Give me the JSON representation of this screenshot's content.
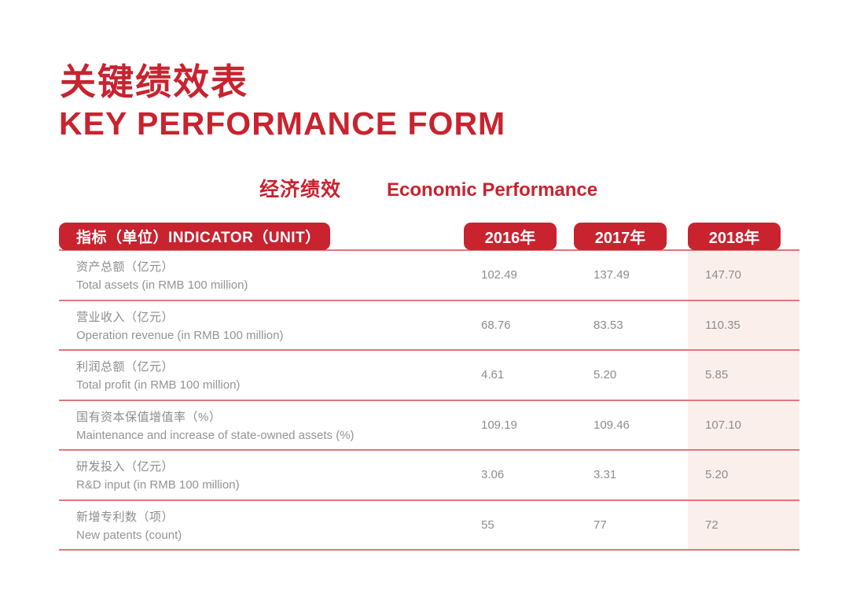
{
  "page": {
    "title_zh": "关键绩效表",
    "title_en": "KEY PERFORMANCE FORM",
    "section_zh": "经济绩效",
    "section_en": "Economic Performance"
  },
  "table": {
    "indicator_header": "指标（单位）INDICATOR（UNIT）",
    "year_headers": [
      "2016年",
      "2017年",
      "2018年"
    ],
    "highlighted_year": "2018年",
    "rows": [
      {
        "label_zh": "资产总额（亿元）",
        "label_en": "Total assets (in RMB 100 million)",
        "values": [
          "102.49",
          "137.49",
          "147.70"
        ]
      },
      {
        "label_zh": "营业收入（亿元）",
        "label_en": "Operation revenue (in RMB 100 million)",
        "values": [
          "68.76",
          "83.53",
          "110.35"
        ]
      },
      {
        "label_zh": "利润总额（亿元）",
        "label_en": "Total profit (in RMB 100 million)",
        "values": [
          "4.61",
          "5.20",
          "5.85"
        ]
      },
      {
        "label_zh": "国有资本保值增值率（%）",
        "label_en": "Maintenance and increase of state-owned assets (%)",
        "values": [
          "109.19",
          "109.46",
          "107.10"
        ]
      },
      {
        "label_zh": "研发投入（亿元）",
        "label_en": "R&D input (in RMB 100 million)",
        "values": [
          "3.06",
          "3.31",
          "5.20"
        ]
      },
      {
        "label_zh": "新增专利数（项）",
        "label_en": "New patents (count)",
        "values": [
          "55",
          "77",
          "72"
        ]
      }
    ]
  },
  "colors": {
    "brand_red": "#C8232F",
    "separator_red": "#E0767B",
    "highlight_pink": "#FBEFEC",
    "text_gray": "#8D8D8D"
  }
}
